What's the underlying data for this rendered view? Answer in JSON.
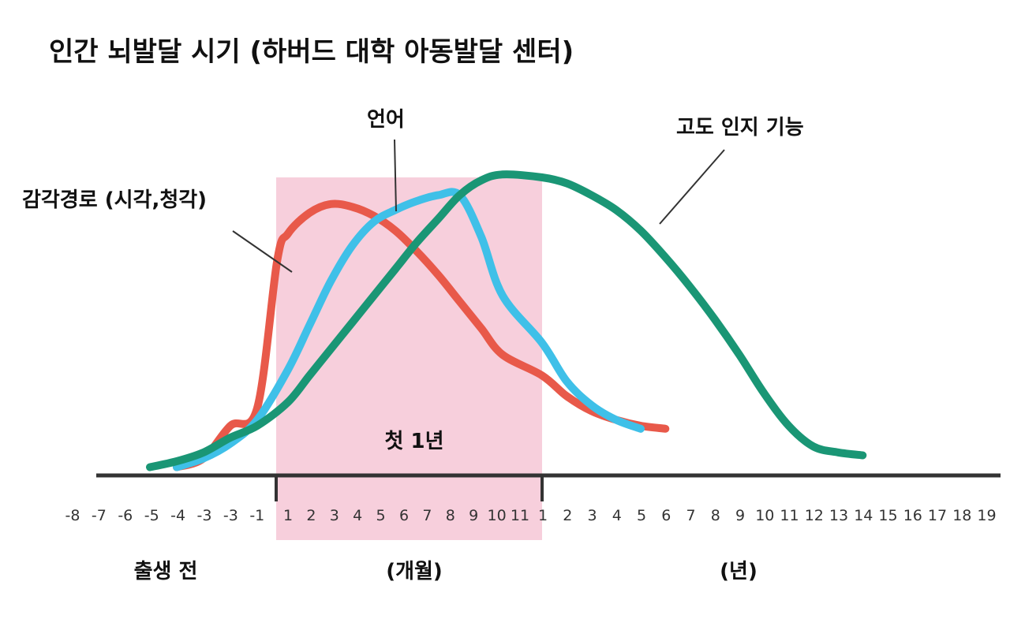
{
  "chart_data": {
    "type": "line",
    "title": "인간 뇌발달 시기 (하버드 대학 아동발달 센터)",
    "xlabel": "",
    "ylabel": "",
    "grid": false,
    "legend": "none",
    "highlight": {
      "label": "첫 1년",
      "from": "1",
      "to": "11",
      "color": "#f7cfdc"
    },
    "x_ticks": {
      "prenatal": [
        "-8",
        "-7",
        "-6",
        "-5",
        "-4",
        "-3",
        "-3",
        "-1"
      ],
      "months": [
        "1",
        "2",
        "3",
        "4",
        "5",
        "6",
        "7",
        "8",
        "9",
        "10",
        "11"
      ],
      "years": [
        "1",
        "2",
        "3",
        "4",
        "5",
        "6",
        "7",
        "8",
        "9",
        "10",
        "11",
        "12",
        "13",
        "14",
        "15",
        "16",
        "17",
        "18",
        "19"
      ]
    },
    "periods": [
      "출생 전",
      "(개월)",
      "(년)"
    ],
    "series": [
      {
        "name": "감각경로 (시각,청각)",
        "color": "#e8594a",
        "points": [
          [
            -3,
            2
          ],
          [
            -2,
            5
          ],
          [
            -1,
            16
          ],
          [
            0,
            22
          ],
          [
            0.5,
            72
          ],
          [
            1,
            81
          ],
          [
            2,
            88
          ],
          [
            3,
            91
          ],
          [
            4,
            90
          ],
          [
            5,
            87
          ],
          [
            6,
            82
          ],
          [
            7,
            75
          ],
          [
            8,
            67
          ],
          [
            9,
            58
          ],
          [
            10,
            49
          ],
          [
            11,
            40
          ],
          [
            "1y",
            33
          ],
          [
            "2y",
            26
          ],
          [
            "3y",
            21
          ],
          [
            "4y",
            18
          ],
          [
            "5y",
            16
          ],
          [
            "6y",
            15
          ]
        ]
      },
      {
        "name": "언어",
        "color": "#3fc0e8",
        "points": [
          [
            -3,
            2
          ],
          [
            -2,
            5
          ],
          [
            -1,
            10
          ],
          [
            0,
            18
          ],
          [
            1,
            35
          ],
          [
            2,
            50
          ],
          [
            3,
            65
          ],
          [
            4,
            77
          ],
          [
            5,
            85
          ],
          [
            6,
            89
          ],
          [
            7,
            92
          ],
          [
            8,
            94
          ],
          [
            9,
            94
          ],
          [
            10,
            80
          ],
          [
            11,
            60
          ],
          [
            "1y",
            44
          ],
          [
            "2y",
            31
          ],
          [
            "3y",
            23
          ],
          [
            "4y",
            18
          ],
          [
            "5y",
            15
          ]
        ]
      },
      {
        "name": "고도 인지 기능",
        "color": "#1a9675",
        "points": [
          [
            -4,
            2
          ],
          [
            -3,
            4
          ],
          [
            -2,
            7
          ],
          [
            -1,
            12
          ],
          [
            0,
            16
          ],
          [
            1,
            24
          ],
          [
            2,
            33
          ],
          [
            3,
            42
          ],
          [
            4,
            51
          ],
          [
            5,
            60
          ],
          [
            6,
            69
          ],
          [
            7,
            78
          ],
          [
            8,
            86
          ],
          [
            9,
            94
          ],
          [
            10,
            99
          ],
          [
            11,
            101
          ],
          [
            "1y",
            100
          ],
          [
            "2y",
            98
          ],
          [
            "3y",
            94
          ],
          [
            "4y",
            89
          ],
          [
            "5y",
            82
          ],
          [
            "6y",
            73
          ],
          [
            "7y",
            63
          ],
          [
            "8y",
            52
          ],
          [
            "9y",
            40
          ],
          [
            "10y",
            27
          ],
          [
            "11y",
            16
          ],
          [
            "12y",
            9
          ],
          [
            "13y",
            7
          ],
          [
            "14y",
            6
          ]
        ]
      }
    ]
  }
}
